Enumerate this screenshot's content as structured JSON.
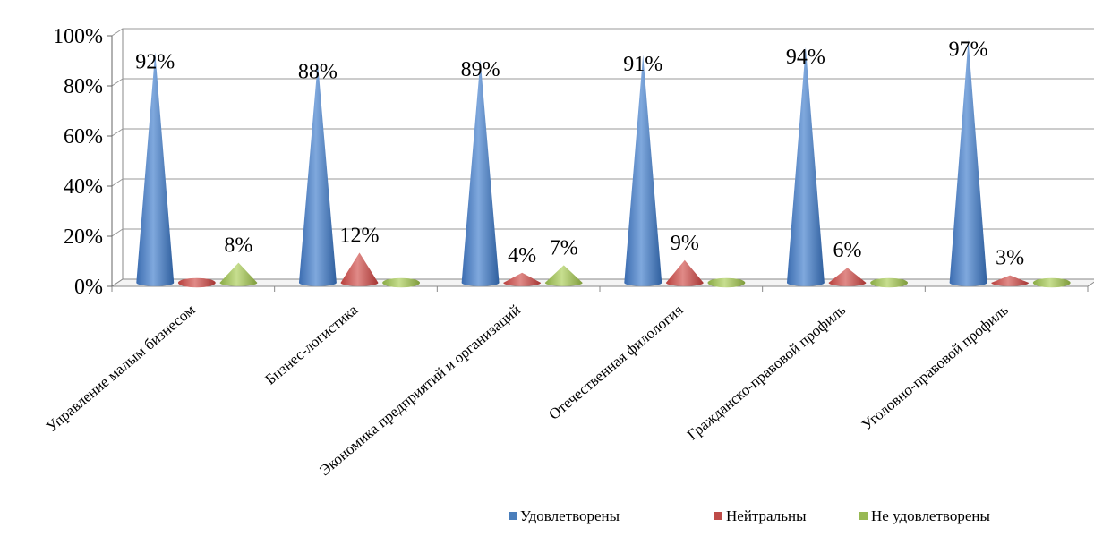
{
  "chart_data": {
    "type": "bar",
    "subtype": "3d-cone-clustered",
    "categories": [
      "Управление малым бизнесом",
      "Бизнес-логистика",
      "Экономика предприятий и организаций",
      "Отечественная филология",
      "Гражданско-правовой профиль",
      "Уголовно-правовой профиль"
    ],
    "series": [
      {
        "name": "Удовлетворены",
        "values": [
          92,
          88,
          89,
          91,
          94,
          97
        ],
        "labels": [
          "92%",
          "88%",
          "89%",
          "91%",
          "94%",
          "97%"
        ]
      },
      {
        "name": "Нейтральны",
        "values": [
          0,
          12,
          4,
          9,
          6,
          3
        ],
        "labels": [
          "",
          "12%",
          "4%",
          "9%",
          "6%",
          "3%"
        ]
      },
      {
        "name": "Не удовлетворены",
        "values": [
          8,
          0,
          7,
          0,
          0,
          0
        ],
        "labels": [
          "8%",
          "",
          "7%",
          "",
          "",
          ""
        ]
      }
    ],
    "yticks": [
      "0%",
      "20%",
      "40%",
      "60%",
      "80%",
      "100%"
    ],
    "ylim": [
      0,
      100
    ],
    "grid": true,
    "legend_position": "bottom-right",
    "colors": {
      "Удовлетворены": "#4a7ebb",
      "Нейтральны": "#be4b48",
      "Не удовлетворены": "#98b954"
    }
  }
}
